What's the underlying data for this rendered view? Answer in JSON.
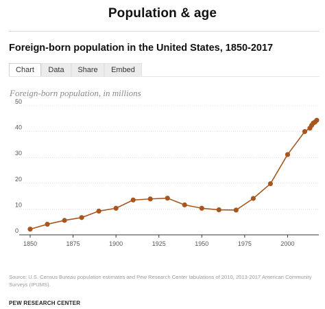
{
  "section_title": "Population & age",
  "chart_title": "Foreign-born population in the United States, 1850-2017",
  "tabs": [
    {
      "label": "Chart",
      "active": true
    },
    {
      "label": "Data",
      "active": false
    },
    {
      "label": "Share",
      "active": false
    },
    {
      "label": "Embed",
      "active": false
    }
  ],
  "source": "Source: U.S. Census Bureau population estimates and Pew Research Center tabulations of 2010, 2013-2017 American Community Surveys (IPUMS).",
  "footer": "PEW RESEARCH CENTER",
  "colors": {
    "series": "#a8561d",
    "grid": "#dcdcdc",
    "axis": "#333333"
  },
  "chart_data": {
    "type": "line",
    "ylabel": "Foreign-born population, in millions",
    "xlabel": "",
    "xlim": [
      1850,
      2017
    ],
    "ylim": [
      0,
      50
    ],
    "xticks": [
      "1850",
      "1875",
      "1900",
      "1925",
      "1950",
      "1975",
      "2000"
    ],
    "yticks": [
      "0",
      "10",
      "20",
      "30",
      "40",
      "50"
    ],
    "grid": "horizontal",
    "markers": true,
    "series": [
      {
        "x": [
          1850,
          1860,
          1870,
          1880,
          1890,
          1900,
          1910,
          1920,
          1930,
          1940,
          1950,
          1960,
          1970,
          1980,
          1990,
          2000,
          2010,
          2013,
          2014,
          2015,
          2016,
          2017
        ],
        "values": [
          2.2,
          4.1,
          5.6,
          6.7,
          9.2,
          10.3,
          13.5,
          13.9,
          14.2,
          11.6,
          10.3,
          9.7,
          9.6,
          14.1,
          19.8,
          31.1,
          40.0,
          41.3,
          42.4,
          43.3,
          43.7,
          44.4
        ]
      }
    ]
  }
}
